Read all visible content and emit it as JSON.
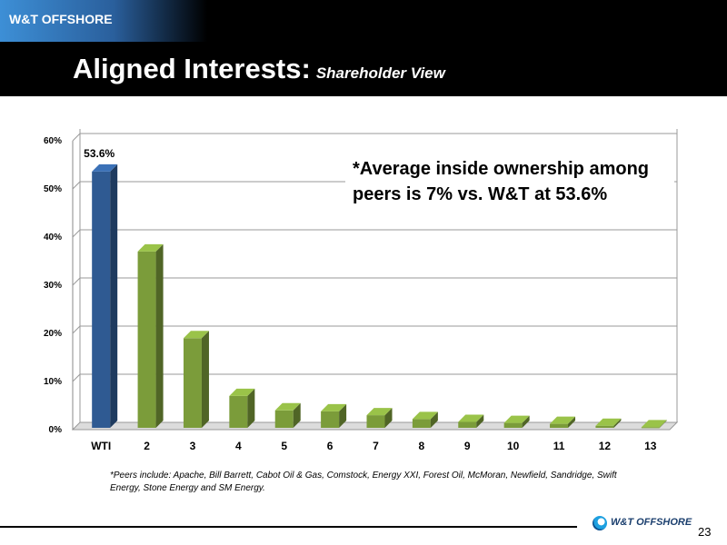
{
  "header": {
    "brand": "W&T OFFSHORE",
    "title_main": "Aligned Interests:",
    "title_sub": "Shareholder View"
  },
  "chart_data": {
    "type": "bar",
    "categories": [
      "WTI",
      "2",
      "3",
      "4",
      "5",
      "6",
      "7",
      "8",
      "9",
      "10",
      "11",
      "12",
      "13"
    ],
    "values": [
      53.6,
      37.0,
      19.0,
      7.0,
      4.0,
      3.8,
      3.0,
      2.2,
      1.6,
      1.4,
      1.2,
      0.8,
      0.5
    ],
    "ylim": [
      0,
      60
    ],
    "yticks": [
      "0%",
      "10%",
      "20%",
      "30%",
      "40%",
      "50%",
      "60%"
    ],
    "data_labels": [
      "53.6%"
    ],
    "annotation": "*Average inside ownership among peers is 7% vs. W&T at 53.6%",
    "colors": {
      "highlight": "#2f5a92",
      "peer": "#7b9c3a"
    },
    "grid": true,
    "style": "3d"
  },
  "footnote": "*Peers include: Apache, Bill Barrett, Cabot Oil & Gas, Comstock, Energy XXI, Forest Oil, McMoran, Newfield, Sandridge, Swift Energy, Stone Energy and SM Energy.",
  "footer": {
    "logo_text": "W&T OFFSHORE",
    "page_number": "23"
  }
}
